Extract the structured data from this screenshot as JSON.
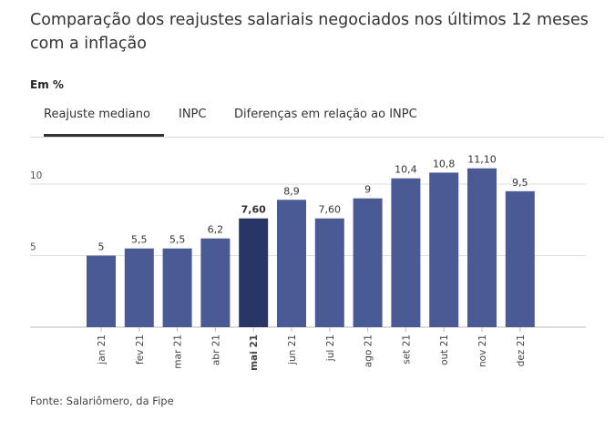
{
  "title": "Comparação dos reajustes salariais negociados nos últimos 12 meses com a inflação",
  "unit_label": "Em %",
  "tabs": [
    {
      "label": "Reajuste mediano",
      "active": true
    },
    {
      "label": "INPC",
      "active": false
    },
    {
      "label": "Diferenças em relação ao INPC",
      "active": false
    }
  ],
  "source": "Fonte: Salariômero, da Fipe",
  "colors": {
    "bar": "#4a5a94",
    "bar_highlight": "#273567",
    "grid": "#dddddd",
    "axis": "#bbbbbb"
  },
  "chart_data": {
    "type": "bar",
    "categories": [
      "jan 21",
      "fev 21",
      "mar 21",
      "abr 21",
      "mai 21",
      "jun 21",
      "jul 21",
      "ago 21",
      "set 21",
      "out 21",
      "nov 21",
      "dez 21"
    ],
    "values": [
      5,
      5.5,
      5.5,
      6.2,
      7.6,
      8.9,
      7.6,
      9,
      10.4,
      10.8,
      11.1,
      9.5
    ],
    "value_labels": [
      "5",
      "5,5",
      "5,5",
      "6,2",
      "7,60",
      "8,9",
      "7,60",
      "9",
      "10,4",
      "10,8",
      "11,10",
      "9,5"
    ],
    "highlighted_index": 4,
    "y_ticks": [
      5,
      10
    ],
    "y_tick_labels": [
      "5",
      "10"
    ],
    "ylim": [
      0,
      10.8
    ],
    "grid": true,
    "xlabel": "",
    "ylabel": ""
  }
}
